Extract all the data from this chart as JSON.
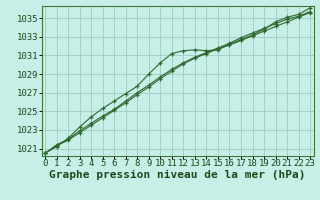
{
  "background_color": "#c8eee8",
  "grid_color": "#a0ccc0",
  "line_color": "#2d6a2d",
  "xlabel": "Graphe pression niveau de la mer (hPa)",
  "xlabel_fontsize": 8,
  "tick_fontsize": 6.5,
  "xlim": [
    -0.3,
    23.3
  ],
  "ylim": [
    1020.2,
    1036.3
  ],
  "yticks": [
    1021,
    1023,
    1025,
    1027,
    1029,
    1031,
    1033,
    1035
  ],
  "xticks": [
    0,
    1,
    2,
    3,
    4,
    5,
    6,
    7,
    8,
    9,
    10,
    11,
    12,
    13,
    14,
    15,
    16,
    17,
    18,
    19,
    20,
    21,
    22,
    23
  ],
  "line1": [
    1020.5,
    1021.4,
    1022.0,
    1022.9,
    1023.7,
    1024.5,
    1025.2,
    1026.1,
    1027.0,
    1027.8,
    1028.7,
    1029.5,
    1030.2,
    1030.8,
    1031.3,
    1031.8,
    1032.3,
    1032.9,
    1033.4,
    1033.9,
    1034.4,
    1034.9,
    1035.2,
    1035.7
  ],
  "line2": [
    1020.5,
    1021.3,
    1021.9,
    1022.7,
    1023.5,
    1024.3,
    1025.1,
    1025.9,
    1026.8,
    1027.6,
    1028.5,
    1029.3,
    1030.1,
    1030.7,
    1031.2,
    1031.7,
    1032.1,
    1032.6,
    1033.1,
    1033.6,
    1034.1,
    1034.6,
    1035.1,
    1035.6
  ],
  "line3": [
    1020.5,
    1021.2,
    1022.1,
    1023.3,
    1024.4,
    1025.3,
    1026.1,
    1026.9,
    1027.7,
    1029.0,
    1030.2,
    1031.2,
    1031.5,
    1031.6,
    1031.5,
    1031.6,
    1032.2,
    1032.7,
    1033.2,
    1033.8,
    1034.6,
    1035.1,
    1035.4,
    1036.1
  ]
}
